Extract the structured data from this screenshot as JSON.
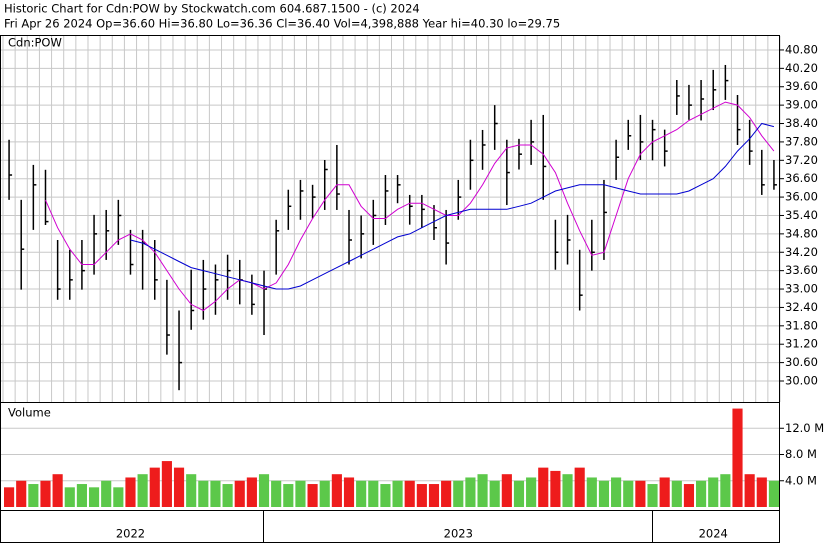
{
  "chart_data": [
    {
      "type": "hlc",
      "title": "Historic Chart for Cdn:POW by Stockwatch.com 604.687.1500 - (c) 2024",
      "subtitle": "Fri Apr 26 2024   Op=36.60   Hi=36.80   Lo=36.36   Cl=36.40   Vol=4,398,888   Year hi=40.30   lo=29.75",
      "label": "Cdn:POW",
      "color": "#000000",
      "high": [
        37.87,
        35.91,
        37.05,
        36.89,
        34.6,
        34.28,
        34.6,
        35.42,
        35.58,
        35.91,
        34.93,
        34.93,
        34.6,
        33.3,
        32.3,
        33.63,
        33.95,
        33.8,
        34.12,
        33.95,
        33.47,
        33.6,
        35.26,
        36.24,
        36.56,
        36.4,
        37.21,
        37.7,
        35.58,
        35.4,
        35.91,
        36.72,
        36.72,
        36.07,
        36.07,
        35.74,
        35.58,
        36.56,
        37.87,
        38.19,
        39.0,
        37.87,
        37.9,
        38.52,
        38.68,
        35.26,
        35.42,
        34.28,
        35.26,
        36.56,
        37.87,
        38.52,
        38.68,
        38.52,
        38.2,
        39.82,
        39.66,
        39.82,
        40.15,
        40.31,
        39.33,
        38.52,
        37.54,
        37.21
      ],
      "low": [
        35.91,
        32.98,
        34.93,
        35.09,
        32.65,
        32.65,
        32.98,
        33.47,
        33.95,
        34.44,
        33.47,
        32.98,
        32.65,
        30.86,
        29.7,
        31.67,
        32.0,
        32.16,
        32.65,
        32.5,
        32.16,
        31.5,
        33.47,
        34.93,
        35.26,
        35.3,
        35.58,
        35.58,
        33.8,
        34.0,
        34.44,
        35.09,
        35.8,
        35.1,
        35.0,
        34.6,
        33.8,
        35.26,
        36.24,
        36.89,
        37.54,
        35.74,
        36.9,
        37.05,
        35.91,
        33.63,
        33.8,
        32.3,
        33.6,
        33.95,
        36.56,
        37.54,
        37.21,
        37.2,
        37.0,
        38.68,
        38.52,
        38.5,
        38.84,
        39.17,
        37.7,
        37.05,
        36.07,
        36.24
      ],
      "close": [
        36.72,
        34.3,
        36.4,
        35.2,
        33.0,
        33.3,
        33.6,
        34.8,
        34.9,
        35.4,
        33.8,
        34.5,
        33.3,
        31.5,
        30.6,
        32.3,
        33.0,
        33.3,
        33.6,
        33.3,
        32.5,
        33.0,
        34.9,
        35.7,
        36.2,
        36.0,
        36.9,
        36.1,
        34.6,
        34.8,
        35.4,
        36.2,
        36.4,
        35.7,
        35.6,
        35.0,
        34.5,
        36.0,
        37.2,
        37.7,
        38.4,
        36.8,
        37.4,
        37.8,
        37.0,
        34.2,
        34.6,
        32.8,
        34.2,
        35.5,
        37.3,
        38.0,
        37.8,
        38.2,
        37.5,
        39.3,
        39.0,
        39.2,
        39.5,
        39.8,
        38.2,
        37.5,
        36.4,
        36.4
      ],
      "lines": [
        {
          "color": "#d000d0",
          "values": [
            null,
            null,
            null,
            35.9,
            35.0,
            34.3,
            33.8,
            33.8,
            34.2,
            34.6,
            34.8,
            34.6,
            34.2,
            33.6,
            33.0,
            32.5,
            32.3,
            32.6,
            33.0,
            33.3,
            33.2,
            33.0,
            33.2,
            33.8,
            34.6,
            35.3,
            35.9,
            36.4,
            36.4,
            35.7,
            35.3,
            35.3,
            35.6,
            35.8,
            35.8,
            35.6,
            35.4,
            35.4,
            35.8,
            36.4,
            37.1,
            37.6,
            37.7,
            37.7,
            37.4,
            36.8,
            35.8,
            34.9,
            34.1,
            34.2,
            35.4,
            36.6,
            37.4,
            37.8,
            38.0,
            38.2,
            38.5,
            38.7,
            38.9,
            39.1,
            39.0,
            38.6,
            38.0,
            37.5
          ]
        },
        {
          "color": "#0000d0",
          "values": [
            null,
            null,
            null,
            null,
            null,
            null,
            null,
            null,
            null,
            null,
            34.6,
            34.5,
            34.3,
            34.1,
            33.9,
            33.7,
            33.6,
            33.5,
            33.4,
            33.3,
            33.2,
            33.1,
            33.0,
            33.0,
            33.1,
            33.3,
            33.5,
            33.7,
            33.9,
            34.1,
            34.3,
            34.5,
            34.7,
            34.8,
            35.0,
            35.2,
            35.4,
            35.5,
            35.6,
            35.6,
            35.6,
            35.6,
            35.7,
            35.8,
            36.0,
            36.2,
            36.3,
            36.4,
            36.4,
            36.4,
            36.3,
            36.2,
            36.1,
            36.1,
            36.1,
            36.1,
            36.2,
            36.4,
            36.6,
            37.0,
            37.5,
            37.9,
            38.4,
            38.3
          ]
        }
      ],
      "ylim": [
        29.38,
        41.19
      ],
      "yticks": [
        {
          "value": 30,
          "label": "30.00"
        },
        {
          "value": 30.6,
          "label": "30.60"
        },
        {
          "value": 31.2,
          "label": "31.20"
        },
        {
          "value": 31.8,
          "label": "31.80"
        },
        {
          "value": 32.4,
          "label": "32.40"
        },
        {
          "value": 33,
          "label": "33.00"
        },
        {
          "value": 33.6,
          "label": "33.60"
        },
        {
          "value": 34.2,
          "label": "34.20"
        },
        {
          "value": 34.8,
          "label": "34.80"
        },
        {
          "value": 35.4,
          "label": "35.40"
        },
        {
          "value": 36,
          "label": "36.00"
        },
        {
          "value": 36.6,
          "label": "36.60"
        },
        {
          "value": 37.2,
          "label": "37.20"
        },
        {
          "value": 37.8,
          "label": "37.80"
        },
        {
          "value": 38.4,
          "label": "38.40"
        },
        {
          "value": 39,
          "label": "39.00"
        },
        {
          "value": 39.6,
          "label": "39.60"
        },
        {
          "value": 40.2,
          "label": "40.20"
        },
        {
          "value": 40.8,
          "label": "40.80"
        }
      ],
      "grid": true
    },
    {
      "type": "volume",
      "title": "Volume",
      "up_color": "#5cc84a",
      "down_color": "#ee1c1c",
      "categories": [
        null,
        null,
        null,
        null,
        null,
        null,
        null,
        null,
        null,
        null,
        "2022",
        null,
        null,
        null,
        null,
        null,
        null,
        null,
        null,
        null,
        null,
        null,
        null,
        null,
        null,
        null,
        null,
        null,
        null,
        null,
        null,
        null,
        null,
        null,
        null,
        null,
        null,
        "2023",
        null,
        null,
        null,
        null,
        null,
        null,
        null,
        null,
        null,
        null,
        null,
        null,
        null,
        null,
        null,
        null,
        null,
        null,
        null,
        null,
        "2024",
        null,
        null,
        null,
        null,
        null
      ],
      "values": [
        3,
        4,
        3.5,
        4,
        5,
        3,
        3.5,
        3,
        4,
        3,
        4.5,
        5,
        6,
        7,
        6,
        5,
        4,
        4,
        3.5,
        4,
        4.5,
        5,
        4,
        3.5,
        4,
        3.5,
        4,
        5,
        4.5,
        4,
        4,
        3.5,
        4,
        4,
        3.5,
        3.5,
        4,
        4,
        4.5,
        5,
        4,
        5,
        4,
        4.5,
        6,
        5.5,
        5,
        6,
        4.5,
        4,
        4.5,
        4,
        4,
        3.5,
        4.5,
        4,
        3.5,
        4,
        4.5,
        5,
        15,
        5,
        4.5,
        4
      ],
      "ylim": [
        0,
        15.85
      ],
      "yticks": [
        {
          "value": 4,
          "label": "4.0 M"
        },
        {
          "value": 8,
          "label": "8.0 M"
        },
        {
          "value": 12,
          "label": "12.0 M"
        }
      ],
      "grid": true
    }
  ]
}
